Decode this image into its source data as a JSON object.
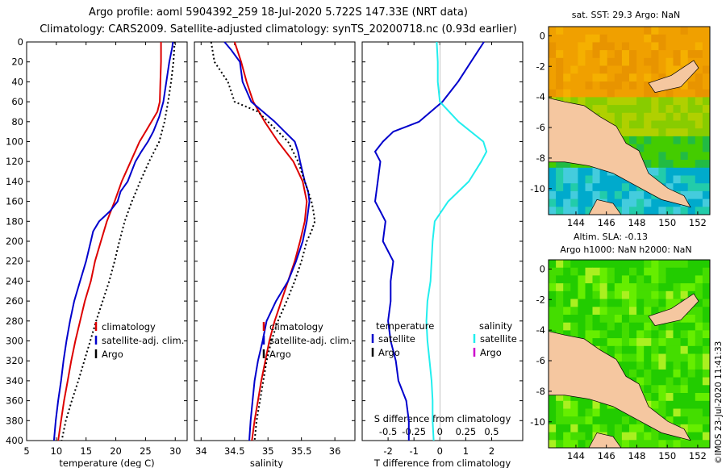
{
  "titles": {
    "line1": "Argo profile: aoml 5904392_259 18-Jul-2020 5.722S 147.33E (NRT data)",
    "line2": "Climatology: CARS2009. Satellite-adjusted climatology: synTS_20200718.nc (0.93d earlier)"
  },
  "colors": {
    "climatology": "#dd0000",
    "satellite": "#0000cc",
    "argo": "#000000",
    "satellite_salinity": "#22eeee",
    "argo_salinity": "#cc00cc",
    "land": "#f5c7a0"
  },
  "chart_data": [
    {
      "type": "line",
      "name": "temperature-profile",
      "xlabel": "temperature (deg C)",
      "ylabel": "depth",
      "xlim": [
        5,
        32
      ],
      "ylim": [
        400,
        0
      ],
      "xticks": [
        5,
        10,
        15,
        20,
        25,
        30
      ],
      "yticks": [
        0,
        20,
        40,
        60,
        80,
        100,
        120,
        140,
        160,
        180,
        200,
        220,
        240,
        260,
        280,
        300,
        320,
        340,
        360,
        380,
        400
      ],
      "legend": [
        "climatology",
        "satellite-adj. clim.",
        "Argo"
      ],
      "series": [
        {
          "name": "climatology",
          "depth": [
            0,
            20,
            40,
            60,
            70,
            80,
            90,
            100,
            120,
            140,
            160,
            180,
            200,
            220,
            240,
            260,
            280,
            300,
            320,
            340,
            360,
            380,
            400
          ],
          "values": [
            27.6,
            27.6,
            27.5,
            27.4,
            27.0,
            26.0,
            25.0,
            24.0,
            22.5,
            21.0,
            19.8,
            18.5,
            17.5,
            16.5,
            15.8,
            14.8,
            14.0,
            13.2,
            12.5,
            11.9,
            11.3,
            10.8,
            10.3
          ]
        },
        {
          "name": "satellite-adj. clim.",
          "depth": [
            0,
            5,
            20,
            40,
            60,
            75,
            90,
            100,
            110,
            120,
            140,
            150,
            160,
            170,
            180,
            190,
            200,
            220,
            240,
            260,
            280,
            300,
            320,
            340,
            360,
            380,
            400
          ],
          "values": [
            29.6,
            29.5,
            29.0,
            28.5,
            28.0,
            27.3,
            26.3,
            25.4,
            24.3,
            23.3,
            22.0,
            20.8,
            20.3,
            19.0,
            17.2,
            16.2,
            15.8,
            15.0,
            14.0,
            13.0,
            12.3,
            11.7,
            11.2,
            10.8,
            10.3,
            9.9,
            9.6
          ]
        },
        {
          "name": "Argo",
          "depth": [
            0,
            20,
            40,
            60,
            80,
            100,
            120,
            140,
            160,
            180,
            200,
            220,
            240,
            260,
            280,
            300,
            320,
            340,
            360,
            380,
            400
          ],
          "values": [
            29.9,
            29.7,
            29.3,
            28.8,
            28.2,
            27.3,
            25.6,
            24.1,
            22.7,
            21.5,
            20.6,
            19.8,
            18.9,
            17.8,
            16.7,
            15.7,
            14.7,
            13.7,
            12.6,
            11.6,
            10.9
          ]
        }
      ]
    },
    {
      "type": "line",
      "name": "salinity-profile",
      "xlabel": "salinity",
      "ylabel": "depth",
      "xlim": [
        33.9,
        36.3
      ],
      "ylim": [
        400,
        0
      ],
      "xticks": [
        34,
        34.5,
        35,
        35.5,
        36
      ],
      "legend": [
        "climatology",
        "satellite-adj. clim.",
        "Argo"
      ],
      "series": [
        {
          "name": "climatology",
          "depth": [
            0,
            10,
            20,
            40,
            60,
            80,
            100,
            120,
            140,
            160,
            180,
            200,
            220,
            240,
            260,
            280,
            300,
            320,
            340,
            360,
            380,
            400
          ],
          "values": [
            34.5,
            34.55,
            34.6,
            34.68,
            34.78,
            34.95,
            35.15,
            35.38,
            35.52,
            35.58,
            35.55,
            35.48,
            35.4,
            35.3,
            35.2,
            35.1,
            35.02,
            34.96,
            34.9,
            34.85,
            34.8,
            34.76
          ]
        },
        {
          "name": "satellite-adj. clim.",
          "depth": [
            0,
            8,
            20,
            40,
            60,
            80,
            90,
            100,
            110,
            120,
            140,
            150,
            160,
            180,
            200,
            220,
            240,
            260,
            280,
            300,
            320,
            340,
            360,
            380,
            400
          ],
          "values": [
            34.35,
            34.45,
            34.58,
            34.62,
            34.75,
            35.1,
            35.25,
            35.4,
            35.45,
            35.48,
            35.55,
            35.6,
            35.62,
            35.58,
            35.52,
            35.42,
            35.3,
            35.12,
            34.98,
            34.92,
            34.85,
            34.8,
            34.77,
            34.74,
            34.72
          ]
        },
        {
          "name": "Argo",
          "depth": [
            0,
            20,
            40,
            60,
            70,
            80,
            100,
            120,
            140,
            160,
            170,
            180,
            190,
            200,
            220,
            240,
            260,
            280,
            300,
            320,
            340,
            360,
            380,
            400
          ],
          "values": [
            34.15,
            34.2,
            34.4,
            34.5,
            34.85,
            35.0,
            35.3,
            35.45,
            35.55,
            35.65,
            35.68,
            35.7,
            35.65,
            35.58,
            35.5,
            35.4,
            35.28,
            35.15,
            35.05,
            34.98,
            34.93,
            34.88,
            34.83,
            34.8
          ]
        }
      ]
    },
    {
      "type": "line",
      "name": "difference-profile",
      "xlabel": "T difference from climatology",
      "x2label": "S difference from climatology",
      "ylabel": "depth",
      "xlim": [
        -3,
        3.2
      ],
      "x2lim": [
        -0.75,
        0.8
      ],
      "ylim": [
        400,
        0
      ],
      "xticks": [
        -2,
        -1,
        0,
        1,
        2
      ],
      "x2ticks": [
        -0.5,
        -0.25,
        0,
        0.25,
        0.5
      ],
      "legend_temperature": {
        "title": "temperature",
        "items": [
          "satellite",
          "Argo"
        ]
      },
      "legend_salinity": {
        "title": "salinity",
        "items": [
          "satellite",
          "Argo"
        ]
      },
      "series": [
        {
          "name": "temperature satellite",
          "depth": [
            0,
            20,
            40,
            60,
            80,
            90,
            100,
            110,
            120,
            140,
            160,
            170,
            180,
            200,
            220,
            240,
            260,
            280,
            300,
            320,
            340,
            360,
            380,
            400
          ],
          "values": [
            1.7,
            1.2,
            0.7,
            0.1,
            -0.8,
            -1.8,
            -2.2,
            -2.5,
            -2.3,
            -2.4,
            -2.5,
            -2.3,
            -2.1,
            -2.2,
            -1.8,
            -1.9,
            -1.9,
            -2.0,
            -1.9,
            -1.7,
            -1.6,
            -1.3,
            -1.2,
            -1.2
          ]
        },
        {
          "name": "salinity satellite",
          "depth": [
            0,
            20,
            40,
            60,
            80,
            100,
            110,
            120,
            140,
            160,
            180,
            200,
            220,
            240,
            260,
            280,
            300,
            320,
            340,
            360,
            380,
            400
          ],
          "values": [
            -0.03,
            -0.02,
            -0.02,
            0.0,
            0.18,
            0.42,
            0.45,
            0.4,
            0.28,
            0.08,
            -0.05,
            -0.07,
            -0.08,
            -0.09,
            -0.12,
            -0.13,
            -0.12,
            -0.1,
            -0.08,
            -0.07,
            -0.07,
            -0.06
          ]
        }
      ]
    }
  ],
  "maps": {
    "sst": {
      "title": "sat. SST: 29.3 Argo: NaN",
      "xticks": [
        "144",
        "146",
        "148",
        "150",
        "152"
      ],
      "yticks": [
        "0",
        "-2",
        "-4",
        "-6",
        "-8",
        "-10"
      ]
    },
    "sla": {
      "title_line1": "Altim. SLA: -0.13",
      "title_line2": "Argo h1000: NaN h2000: NaN",
      "xticks": [
        "144",
        "146",
        "148",
        "150",
        "152"
      ],
      "yticks": [
        "0",
        "-2",
        "-4",
        "-6",
        "-8",
        "-10"
      ]
    }
  },
  "stamp": "©IMOS 23-Jul-2020 11:41:33"
}
